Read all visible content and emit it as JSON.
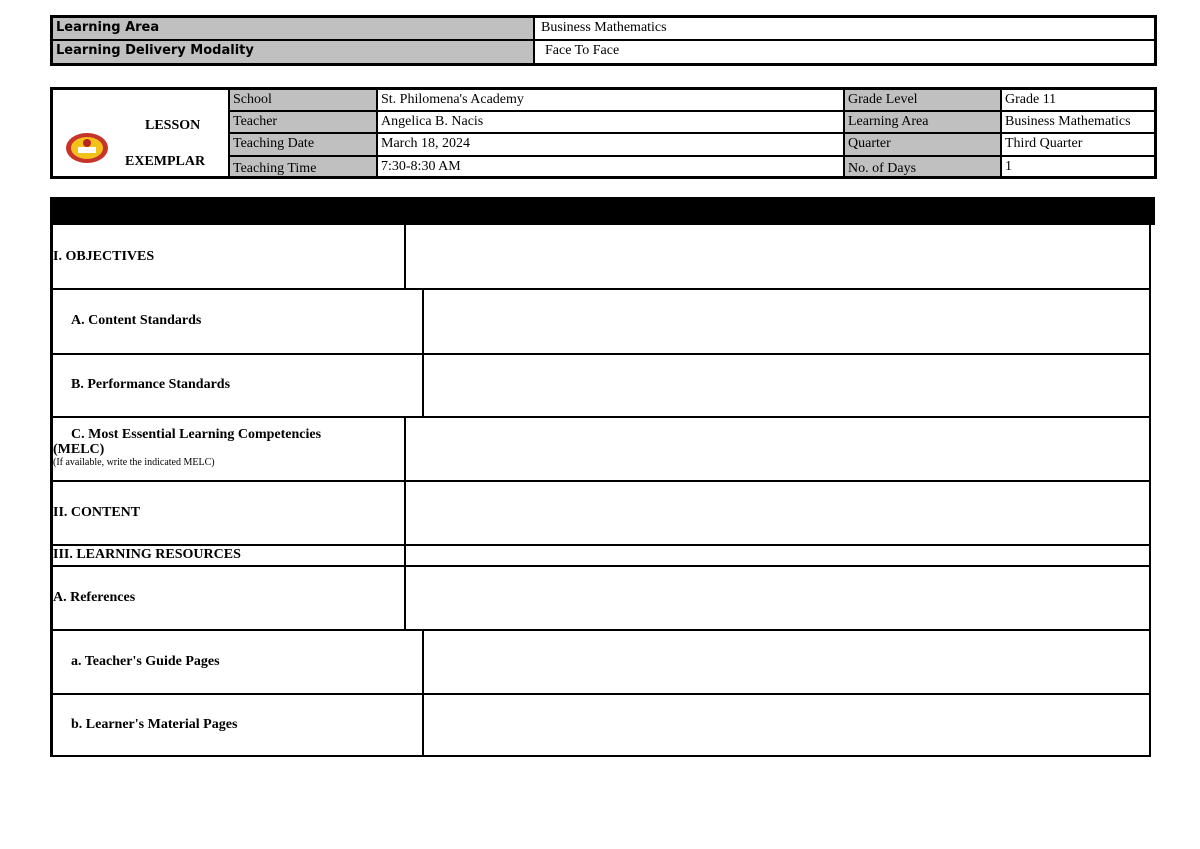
{
  "header_info": {
    "rows": [
      {
        "label": "Learning Area",
        "value": "Business Mathematics"
      },
      {
        "label": "Learning Delivery Modality",
        "value": "Face To Face"
      }
    ]
  },
  "lesson_info": {
    "title_line1": "LESSON",
    "title_line2": "EXEMPLAR",
    "logo": "school-seal-logo",
    "left": [
      {
        "label": "School",
        "value": "St. Philomena's Academy"
      },
      {
        "label": "Teacher",
        "value": "Angelica B. Nacis"
      },
      {
        "label": "Teaching Date",
        "value": "March 18, 2024"
      },
      {
        "label": "Teaching Time",
        "value": "7:30-8:30 AM"
      }
    ],
    "right": [
      {
        "label": "Grade Level",
        "value": "Grade 11"
      },
      {
        "label": "Learning Area",
        "value": "Business Mathematics"
      },
      {
        "label": "Quarter",
        "value": "Third Quarter"
      },
      {
        "label": "No. of Days",
        "value": "1"
      }
    ]
  },
  "sections": [
    {
      "label": "I. OBJECTIVES",
      "content": ""
    },
    {
      "label": "A.  Content Standards",
      "content": ""
    },
    {
      "label": "B.  Performance Standards",
      "content": ""
    },
    {
      "label": "C.  Most Essential Learning Competencies",
      "label2": "(MELC)",
      "note": "(If available, write the indicated MELC)",
      "content": ""
    },
    {
      "label": "II.  CONTENT",
      "content": ""
    },
    {
      "label": "III.  LEARNING RESOURCES",
      "content": ""
    },
    {
      "label": "A.  References",
      "content": ""
    },
    {
      "label": "a.  Teacher's Guide Pages",
      "content": ""
    },
    {
      "label": "b.  Learner's Material Pages",
      "content": ""
    }
  ]
}
